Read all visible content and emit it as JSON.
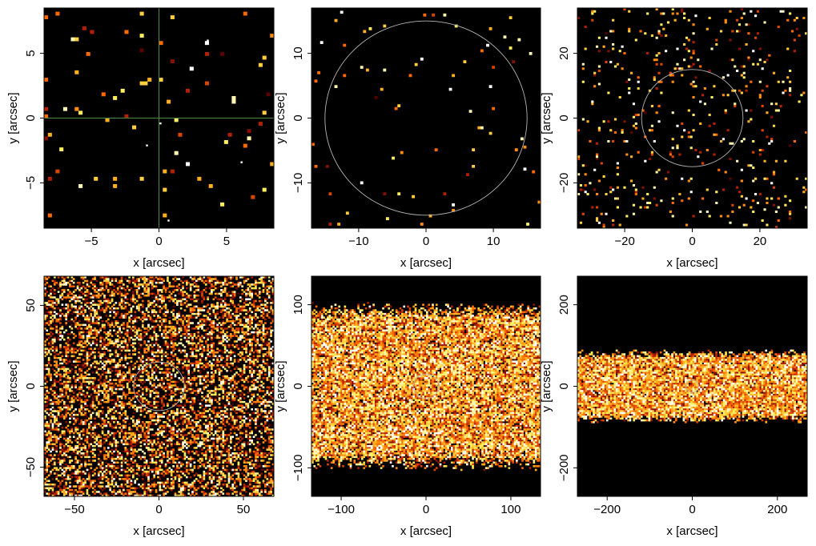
{
  "figure": {
    "background": "#ffffff",
    "plot_background": "#000000",
    "colormap": "afmhot",
    "colormap_stops": [
      "#000000",
      "#5a0000",
      "#b22000",
      "#ff6a00",
      "#ffb020",
      "#ffee60",
      "#ffffff"
    ],
    "circle_color": "#b4b4b4",
    "crosshair_color": "#4c8c3c"
  },
  "chart_data": [
    {
      "type": "heatmap",
      "xlabel": "x [arcsec]",
      "ylabel": "y [arcsec]",
      "xlim": [
        -8.5,
        8.5
      ],
      "ylim": [
        -8.5,
        8.5
      ],
      "xticks": [
        -5,
        0,
        5
      ],
      "xtick_labels": [
        "−5",
        "0",
        "5"
      ],
      "yticks": [
        -5,
        0,
        5
      ],
      "ytick_labels": [
        "−5",
        "0",
        "5"
      ],
      "overlay": "crosshair",
      "crosshair_at": [
        0,
        0
      ],
      "circle_radius": null,
      "band_halfwidth": null,
      "density": 0.02,
      "bins": 60,
      "bright_points": [
        [
          0.1,
          -0.4
        ],
        [
          -0.9,
          -2.1
        ],
        [
          3.6,
          6.0
        ],
        [
          0.7,
          -7.9
        ],
        [
          6.1,
          -3.4
        ]
      ]
    },
    {
      "type": "heatmap",
      "xlabel": "x [arcsec]",
      "ylabel": "y [arcsec]",
      "xlim": [
        -17,
        17
      ],
      "ylim": [
        -17,
        17
      ],
      "xticks": [
        -10,
        0,
        10
      ],
      "xtick_labels": [
        "−10",
        "0",
        "10"
      ],
      "yticks": [
        -10,
        0,
        10
      ],
      "ytick_labels": [
        "−10",
        "0",
        "10"
      ],
      "overlay": "circle",
      "circle_radius": 15,
      "band_halfwidth": null,
      "density": 0.01,
      "bins": 80
    },
    {
      "type": "heatmap",
      "xlabel": "x [arcsec]",
      "ylabel": "y [arcsec]",
      "xlim": [
        -34,
        34
      ],
      "ylim": [
        -34,
        34
      ],
      "xticks": [
        -20,
        0,
        20
      ],
      "xtick_labels": [
        "−20",
        "0",
        "20"
      ],
      "yticks": [
        -20,
        0,
        20
      ],
      "ytick_labels": [
        "−20",
        "0",
        "20"
      ],
      "overlay": "circle",
      "circle_radius": 15,
      "band_halfwidth": null,
      "density": 0.045,
      "bins": 100
    },
    {
      "type": "heatmap",
      "xlabel": "x [arcsec]",
      "ylabel": "y [arcsec]",
      "xlim": [
        -68,
        68
      ],
      "ylim": [
        -68,
        68
      ],
      "xticks": [
        -50,
        0,
        50
      ],
      "xtick_labels": [
        "−50",
        "0",
        "50"
      ],
      "yticks": [
        -50,
        0,
        50
      ],
      "ytick_labels": [
        "−50",
        "0",
        "50"
      ],
      "overlay": "circle",
      "circle_radius": 15,
      "band_halfwidth": null,
      "density": 0.5,
      "bins": 120
    },
    {
      "type": "heatmap",
      "xlabel": "x [arcsec]",
      "ylabel": "y [arcsec]",
      "xlim": [
        -135,
        135
      ],
      "ylim": [
        -135,
        135
      ],
      "xticks": [
        -100,
        0,
        100
      ],
      "xtick_labels": [
        "−100",
        "0",
        "100"
      ],
      "yticks": [
        -100,
        0,
        100
      ],
      "ytick_labels": [
        "−100",
        "0",
        "100"
      ],
      "overlay": "circle",
      "circle_radius": 15,
      "band_halfwidth": 95,
      "density": 0.92,
      "bins": 120
    },
    {
      "type": "heatmap",
      "xlabel": "x [arcsec]",
      "ylabel": "y [arcsec]",
      "xlim": [
        -270,
        270
      ],
      "ylim": [
        -270,
        270
      ],
      "xticks": [
        -200,
        0,
        200
      ],
      "xtick_labels": [
        "−200",
        "0",
        "200"
      ],
      "yticks": [
        -200,
        0,
        200
      ],
      "ytick_labels": [
        "−200",
        "0",
        "200"
      ],
      "overlay": "circle",
      "circle_radius": 15,
      "band_halfwidth": 82,
      "density": 0.97,
      "bins": 120
    }
  ]
}
